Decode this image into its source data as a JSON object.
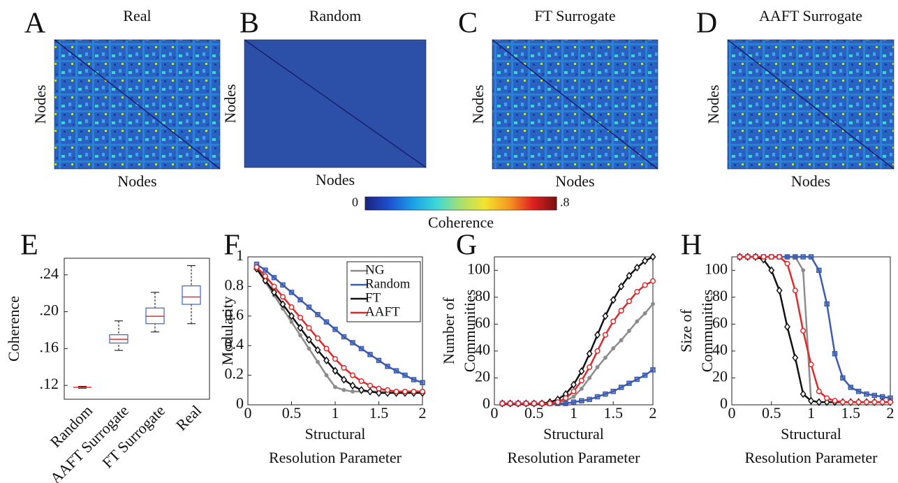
{
  "chart_data": [
    {
      "type": "heatmap",
      "panel": "A",
      "title": "Real",
      "xlabel": "Nodes",
      "ylabel": "Nodes"
    },
    {
      "type": "heatmap",
      "panel": "B",
      "title": "Random",
      "xlabel": "Nodes",
      "ylabel": "Nodes"
    },
    {
      "type": "heatmap",
      "panel": "C",
      "title": "FT Surrogate",
      "xlabel": "Nodes",
      "ylabel": "Nodes"
    },
    {
      "type": "heatmap",
      "panel": "D",
      "title": "AAFT Surrogate",
      "xlabel": "Nodes",
      "ylabel": "Nodes"
    },
    {
      "type": "colorbar",
      "label": "Coherence",
      "lim": [
        0,
        0.8
      ],
      "ticks": [
        0,
        {
          "value": 0.8,
          "label": ".8"
        }
      ],
      "colors": [
        "#1a237e",
        "#1e4fd0",
        "#1aa0e8",
        "#3ed8d8",
        "#a8e070",
        "#f4e430",
        "#f59a20",
        "#e02020",
        "#7a1010"
      ]
    },
    {
      "type": "box",
      "panel": "E",
      "ylabel": "Coherence",
      "categories": [
        "Random",
        "AAFT Surrogate",
        "FT Surrogate",
        "Real"
      ],
      "values": [
        [
          0.117,
          0.118,
          0.118,
          0.118,
          0.119
        ],
        [
          0.158,
          0.166,
          0.17,
          0.175,
          0.19
        ],
        [
          0.178,
          0.187,
          0.195,
          0.204,
          0.221
        ],
        [
          0.187,
          0.208,
          0.216,
          0.228,
          0.25
        ]
      ],
      "box_color": "#3a5fcd",
      "median_color": "#e03030",
      "whisker_color": "#000000",
      "ylim": [
        0.105,
        0.258
      ],
      "yticks": [
        {
          "value": 0.12,
          "label": ".12"
        },
        {
          "value": 0.16,
          "label": ".16"
        },
        {
          "value": 0.2,
          "label": ".20"
        },
        {
          "value": 0.24,
          "label": ".24"
        }
      ]
    },
    {
      "type": "line",
      "panel": "F",
      "xlabel": [
        "Structural",
        "Resolution Parameter"
      ],
      "ylabel": "Modularity",
      "x": [
        0.1,
        0.2,
        0.3,
        0.4,
        0.5,
        0.6,
        0.7,
        0.8,
        0.9,
        1.0,
        1.1,
        1.2,
        1.3,
        1.4,
        1.5,
        1.6,
        1.7,
        1.8,
        1.9,
        2.0
      ],
      "xlim": [
        0,
        2
      ],
      "xticks": [
        0,
        0.5,
        1,
        1.5,
        2
      ],
      "ylim": [
        0,
        1
      ],
      "yticks": [
        0,
        0.2,
        0.4,
        0.6,
        0.8,
        1
      ],
      "legend": "upper right",
      "series": [
        {
          "name": "NG",
          "color": "#8c8c8c",
          "marker": "dot",
          "values": [
            0.92,
            0.83,
            0.74,
            0.65,
            0.56,
            0.47,
            0.38,
            0.29,
            0.2,
            0.12,
            0.1,
            0.09,
            0.09,
            0.09,
            0.09,
            0.09,
            0.09,
            0.09,
            0.09,
            0.09
          ]
        },
        {
          "name": "Random",
          "color": "#3a5bb0",
          "marker": "square",
          "values": [
            0.95,
            0.91,
            0.86,
            0.81,
            0.76,
            0.71,
            0.66,
            0.61,
            0.56,
            0.51,
            0.46,
            0.42,
            0.38,
            0.34,
            0.3,
            0.26,
            0.23,
            0.2,
            0.17,
            0.15
          ]
        },
        {
          "name": "FT",
          "color": "#111111",
          "marker": "diamond",
          "values": [
            0.92,
            0.84,
            0.76,
            0.68,
            0.6,
            0.52,
            0.44,
            0.37,
            0.3,
            0.23,
            0.17,
            0.13,
            0.1,
            0.09,
            0.08,
            0.08,
            0.08,
            0.08,
            0.08,
            0.08
          ]
        },
        {
          "name": "AAFT",
          "color": "#e02828",
          "marker": "circle",
          "values": [
            0.93,
            0.87,
            0.8,
            0.73,
            0.66,
            0.59,
            0.52,
            0.45,
            0.38,
            0.31,
            0.25,
            0.2,
            0.16,
            0.13,
            0.11,
            0.1,
            0.09,
            0.09,
            0.09,
            0.09
          ]
        }
      ]
    },
    {
      "type": "line",
      "panel": "G",
      "xlabel": [
        "Structural",
        "Resolution Parameter"
      ],
      "ylabel": [
        "Number of",
        "Communities"
      ],
      "x": [
        0.1,
        0.2,
        0.3,
        0.4,
        0.5,
        0.6,
        0.7,
        0.8,
        0.9,
        1.0,
        1.1,
        1.2,
        1.3,
        1.4,
        1.5,
        1.6,
        1.7,
        1.8,
        1.9,
        2.0
      ],
      "xlim": [
        0,
        2
      ],
      "xticks": [
        0,
        0.5,
        1,
        1.5,
        2
      ],
      "ylim": [
        0,
        110
      ],
      "yticks": [
        0,
        20,
        40,
        60,
        80,
        100
      ],
      "series": [
        {
          "color": "#8c8c8c",
          "marker": "dot",
          "values": [
            1,
            1,
            1,
            1,
            1,
            1,
            1,
            2,
            3,
            6,
            12,
            20,
            28,
            35,
            42,
            48,
            55,
            62,
            68,
            75
          ]
        },
        {
          "color": "#3a5bb0",
          "marker": "square",
          "values": [
            1,
            1,
            1,
            1,
            1,
            1,
            1,
            1,
            1,
            2,
            3,
            4,
            6,
            8,
            10,
            13,
            16,
            19,
            22,
            26
          ]
        },
        {
          "color": "#111111",
          "marker": "diamond",
          "values": [
            1,
            1,
            1,
            1,
            1,
            1,
            2,
            4,
            8,
            15,
            25,
            38,
            52,
            66,
            78,
            88,
            96,
            102,
            107,
            110
          ]
        },
        {
          "color": "#e02828",
          "marker": "circle",
          "values": [
            1,
            1,
            1,
            1,
            1,
            1,
            1,
            2,
            5,
            10,
            18,
            28,
            40,
            52,
            62,
            70,
            77,
            84,
            89,
            92
          ]
        }
      ]
    },
    {
      "type": "line",
      "panel": "H",
      "xlabel": [
        "Structural",
        "Resolution Parameter"
      ],
      "ylabel": [
        "Size of",
        "Communities"
      ],
      "x": [
        0.1,
        0.2,
        0.3,
        0.4,
        0.5,
        0.6,
        0.7,
        0.8,
        0.9,
        1.0,
        1.1,
        1.2,
        1.3,
        1.4,
        1.5,
        1.6,
        1.7,
        1.8,
        1.9,
        2.0
      ],
      "xlim": [
        0,
        2
      ],
      "xticks": [
        0,
        0.5,
        1,
        1.5,
        2
      ],
      "ylim": [
        0,
        110
      ],
      "yticks": [
        0,
        20,
        40,
        60,
        80,
        100
      ],
      "series": [
        {
          "color": "#8c8c8c",
          "marker": "dot",
          "values": [
            110,
            110,
            110,
            110,
            110,
            110,
            110,
            110,
            100,
            3,
            2,
            2,
            2,
            2,
            2,
            2,
            2,
            2,
            2,
            2
          ]
        },
        {
          "color": "#3a5bb0",
          "marker": "square",
          "values": [
            110,
            110,
            110,
            110,
            110,
            110,
            110,
            110,
            110,
            110,
            100,
            75,
            38,
            20,
            13,
            10,
            8,
            7,
            6,
            5
          ]
        },
        {
          "color": "#111111",
          "marker": "diamond",
          "values": [
            110,
            110,
            110,
            108,
            100,
            85,
            58,
            35,
            8,
            3,
            2,
            2,
            2,
            2,
            2,
            2,
            2,
            2,
            2,
            2
          ]
        },
        {
          "color": "#e02828",
          "marker": "circle",
          "values": [
            110,
            110,
            110,
            110,
            110,
            110,
            105,
            85,
            55,
            30,
            10,
            5,
            3,
            2,
            2,
            2,
            2,
            2,
            2,
            2
          ]
        }
      ]
    }
  ]
}
